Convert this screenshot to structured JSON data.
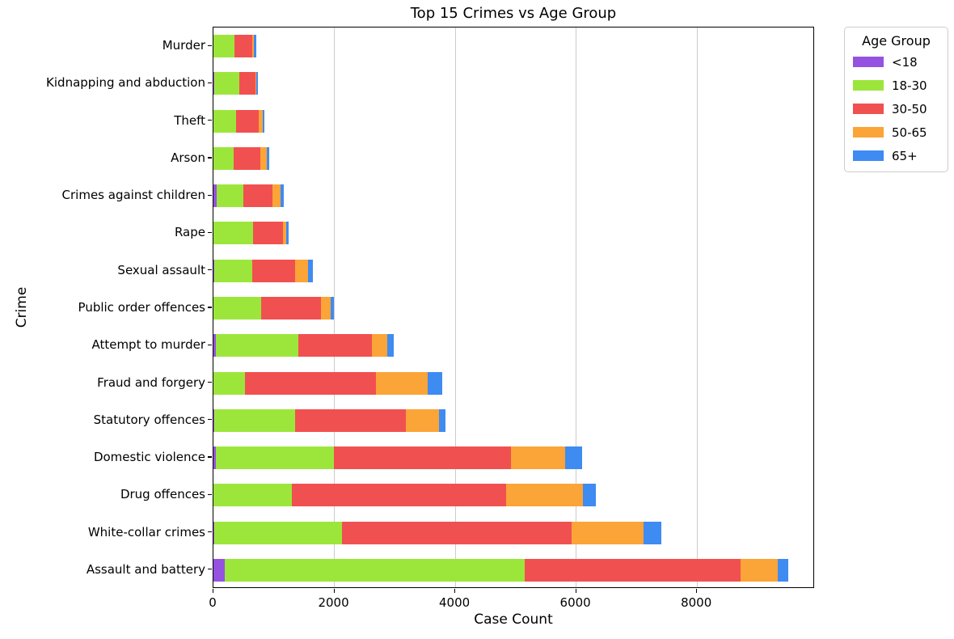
{
  "chart_data": {
    "type": "bar",
    "orientation": "horizontal",
    "stacked": true,
    "title": "Top 15 Crimes vs Age Group",
    "xlabel": "Case Count",
    "ylabel": "Crime",
    "xlim": [
      0,
      9950
    ],
    "xticks": [
      0,
      2000,
      4000,
      6000,
      8000
    ],
    "grid": "vertical-gridlines-on",
    "gridline_color": "#cccccc",
    "legend": {
      "title": "Age Group",
      "position": "upper-right-outside"
    },
    "categories": [
      "Murder",
      "Kidnapping and abduction",
      "Theft",
      "Arson",
      "Crimes against children",
      "Rape",
      "Sexual assault",
      "Public order offences",
      "Attempt to murder",
      "Fraud and forgery",
      "Statutory offences",
      "Domestic violence",
      "Drug offences",
      "White-collar crimes",
      "Assault and battery"
    ],
    "series": [
      {
        "name": "<18",
        "color": "#9552e0",
        "values": [
          0,
          15,
          0,
          0,
          50,
          5,
          10,
          5,
          40,
          0,
          10,
          45,
          5,
          20,
          185
        ]
      },
      {
        "name": "18-30",
        "color": "#9ce63c",
        "values": [
          345,
          410,
          375,
          340,
          450,
          650,
          635,
          780,
          1360,
          525,
          1345,
          1945,
          1295,
          2105,
          4965
        ]
      },
      {
        "name": "30-50",
        "color": "#f15050",
        "values": [
          300,
          265,
          380,
          435,
          470,
          490,
          700,
          990,
          1220,
          2160,
          1830,
          2925,
          3545,
          3795,
          3575
        ]
      },
      {
        "name": "50-65",
        "color": "#fba437",
        "values": [
          30,
          25,
          60,
          105,
          135,
          60,
          220,
          165,
          260,
          865,
          545,
          900,
          1265,
          1200,
          615
        ]
      },
      {
        "name": "65+",
        "color": "#3e8bf2",
        "values": [
          30,
          25,
          25,
          40,
          55,
          45,
          75,
          50,
          105,
          240,
          105,
          280,
          215,
          295,
          165
        ]
      }
    ]
  }
}
